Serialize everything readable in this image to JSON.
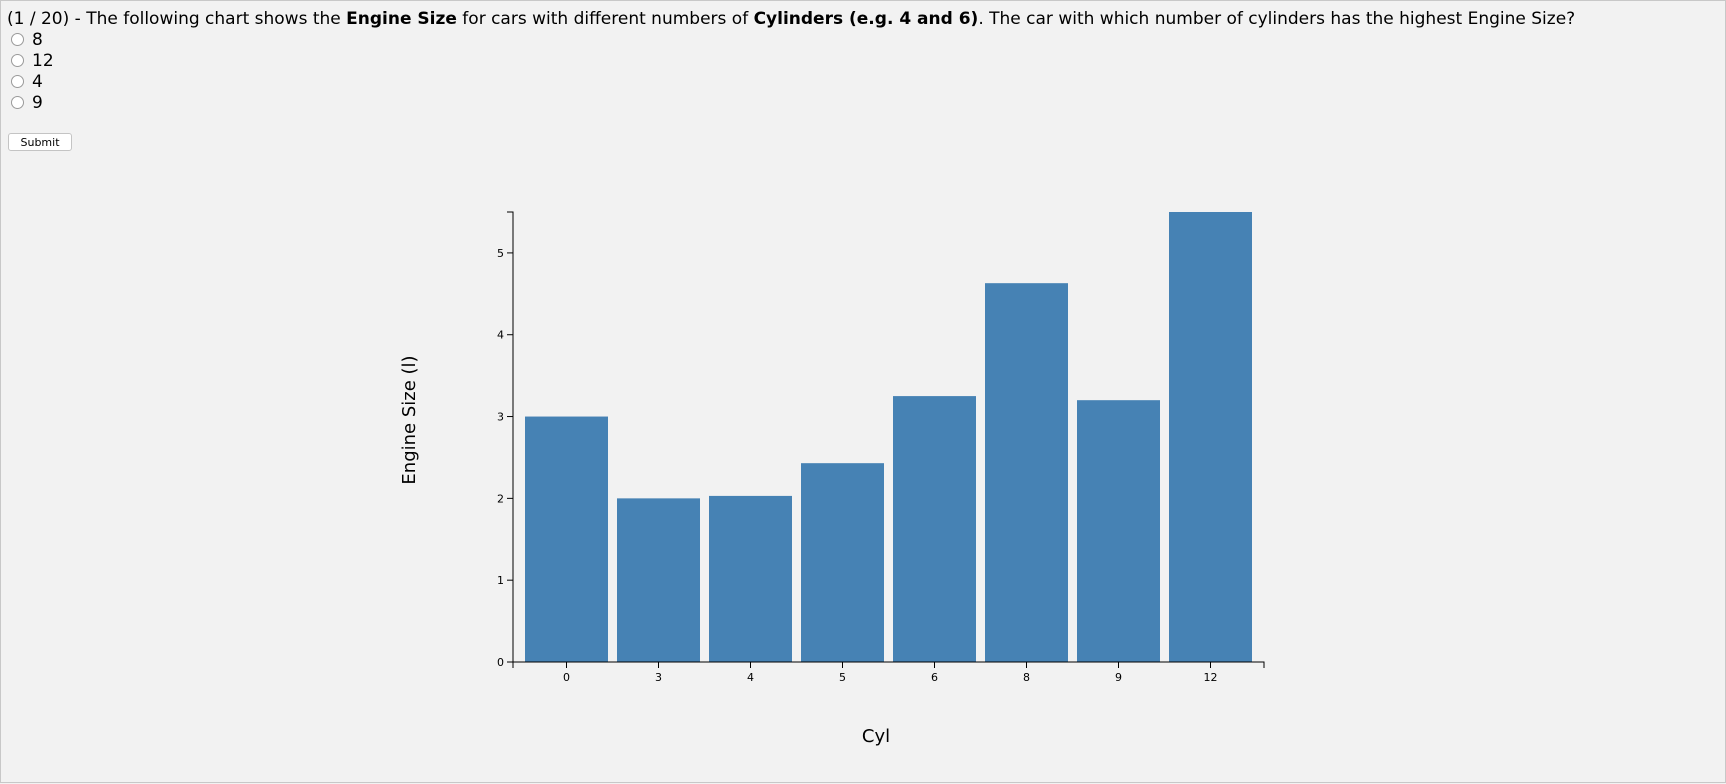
{
  "question": {
    "counter": "(1 / 20)",
    "text_1": " - The following chart shows the ",
    "bold_1": "Engine Size",
    "text_2": " for cars with different numbers of ",
    "bold_2": "Cylinders (e.g. 4 and 6)",
    "text_3": ". The car with which number of cylinders has the highest Engine Size?"
  },
  "options": [
    "8",
    "12",
    "4",
    "9"
  ],
  "submit_label": "Submit",
  "colors": {
    "bar": "#4682b4",
    "background": "#f2f2f2"
  },
  "chart_data": {
    "type": "bar",
    "categories": [
      "0",
      "3",
      "4",
      "5",
      "6",
      "8",
      "9",
      "12"
    ],
    "values": [
      3.0,
      2.0,
      2.03,
      2.43,
      3.25,
      4.63,
      3.2,
      5.5
    ],
    "title": "",
    "xlabel": "Cyl",
    "ylabel": "Engine Size (l)",
    "ylim": [
      0,
      5.5
    ],
    "yticks": [
      0,
      1,
      2,
      3,
      4,
      5
    ],
    "grid": false
  }
}
